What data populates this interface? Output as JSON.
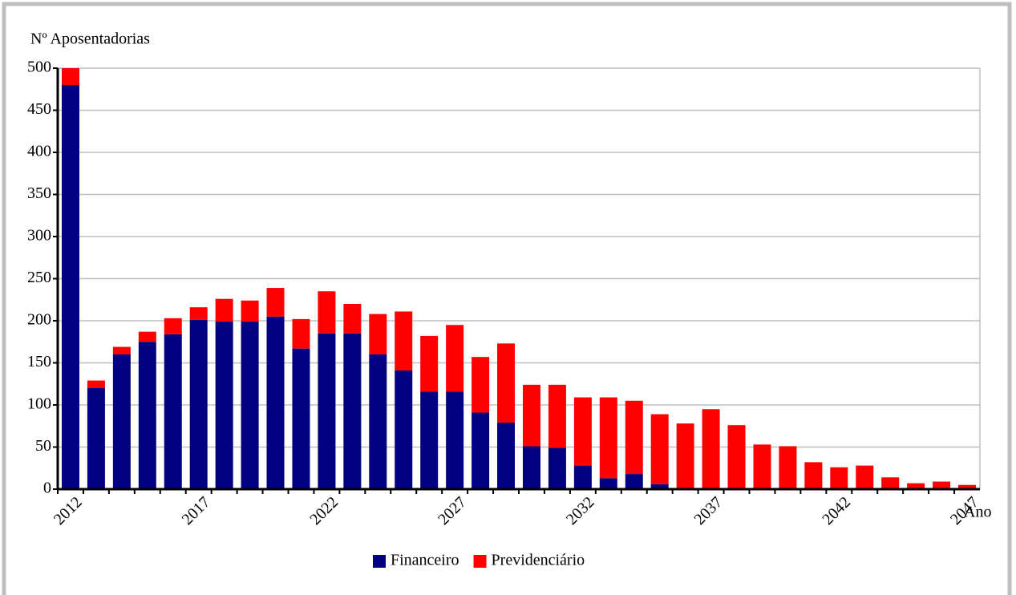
{
  "chart_data": {
    "type": "stacked_bar",
    "y_label": "Nº Aposentadorias",
    "x_label": "Ano",
    "categories": [
      "2012",
      null,
      null,
      null,
      null,
      "2017",
      null,
      null,
      null,
      null,
      "2022",
      null,
      null,
      null,
      null,
      "2027",
      null,
      null,
      null,
      null,
      "2032",
      null,
      null,
      null,
      null,
      "2037",
      null,
      null,
      null,
      null,
      "2042",
      null,
      null,
      null,
      null,
      "2047"
    ],
    "series": [
      {
        "name": "Financeiro",
        "color": "#000080",
        "values": [
          480,
          120,
          160,
          175,
          184,
          201,
          199,
          199,
          205,
          167,
          185,
          185,
          160,
          141,
          116,
          116,
          91,
          79,
          51,
          49,
          28,
          13,
          18,
          6,
          0,
          0,
          0,
          0,
          0,
          0,
          0,
          0,
          0,
          0,
          0,
          0
        ]
      },
      {
        "name": "Previdenciário",
        "color": "#ff0000",
        "values": [
          20,
          9,
          9,
          12,
          19,
          15,
          27,
          25,
          34,
          35,
          50,
          35,
          48,
          70,
          66,
          79,
          66,
          94,
          73,
          75,
          81,
          96,
          87,
          83,
          78,
          95,
          76,
          53,
          51,
          32,
          26,
          28,
          14,
          7,
          9,
          5
        ]
      }
    ],
    "ylim": [
      0,
      500
    ],
    "yticks": [
      0,
      50,
      100,
      150,
      200,
      250,
      300,
      350,
      400,
      450,
      500
    ],
    "grid": true,
    "legend": "bottom"
  }
}
